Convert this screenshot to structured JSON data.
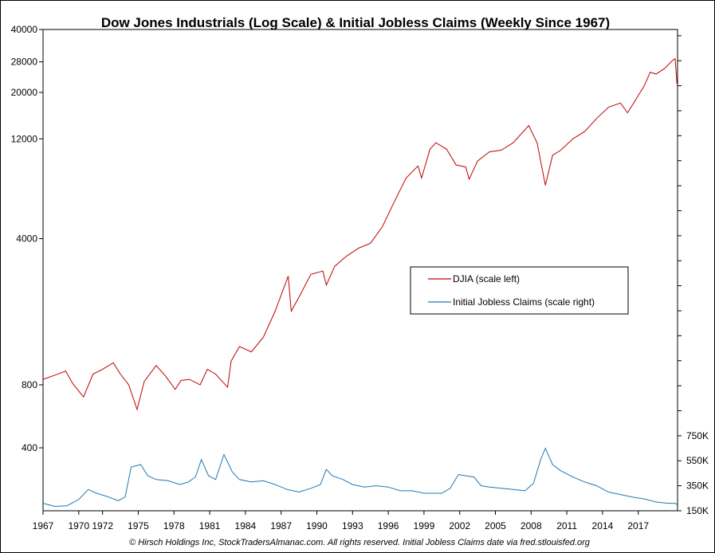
{
  "chart_data": {
    "type": "line",
    "title": "Dow Jones Industrials (Log Scale) & Initial Jobless Claims (Weekly Since 1967)",
    "footer": "© Hirsch Holdings Inc, StockTradersAlmanac.com. All rights reserved. Initial Jobless Claims date via fred.stlouisfed.org",
    "x_ticks": [
      "1967",
      "1970",
      "1972",
      "1975",
      "1978",
      "1981",
      "1984",
      "1987",
      "1990",
      "1993",
      "1996",
      "1999",
      "2002",
      "2005",
      "2008",
      "2011",
      "2014",
      "2017"
    ],
    "x_tick_years": [
      1967,
      1970,
      1972,
      1975,
      1978,
      1981,
      1984,
      1987,
      1990,
      1993,
      1996,
      1999,
      2002,
      2005,
      2008,
      2011,
      2014,
      2017
    ],
    "xlim": [
      1967,
      2020.3
    ],
    "left_axis": {
      "scale": "log",
      "range": [
        200,
        40000
      ],
      "tick_values": [
        400,
        800,
        4000,
        12000,
        20000,
        28000,
        40000
      ],
      "tick_labels": [
        "400",
        "800",
        "4000",
        "12000",
        "20000",
        "28000",
        "40000"
      ]
    },
    "right_axis": {
      "scale": "linear",
      "range": [
        150000,
        4000000
      ],
      "tick_values": [
        150000,
        350000,
        550000,
        750000
      ],
      "tick_labels": [
        "150K",
        "350K",
        "550K",
        "750K"
      ]
    },
    "legend": {
      "position": "center-right",
      "entries": [
        "DJIA (scale left)",
        "Initial Jobless Claims (scale right)"
      ]
    },
    "series": [
      {
        "name": "DJIA (scale left)",
        "axis": "left",
        "color": "#c00000",
        "x": [
          1967,
          1968,
          1968.9,
          1969.5,
          1970.4,
          1971.2,
          1972,
          1972.9,
          1973.5,
          1974.2,
          1974.9,
          1975.5,
          1976.5,
          1977.3,
          1978.1,
          1978.6,
          1979.3,
          1980.2,
          1980.8,
          1981.5,
          1982.5,
          1982.8,
          1983.5,
          1984.5,
          1985.5,
          1986.5,
          1987.6,
          1987.85,
          1988.5,
          1989.5,
          1990.5,
          1990.8,
          1991.5,
          1992.5,
          1993.5,
          1994.5,
          1995.5,
          1996.5,
          1997.5,
          1998.5,
          1998.8,
          1999.5,
          2000,
          2000.9,
          2001.7,
          2002.5,
          2002.8,
          2003.5,
          2004.5,
          2005.5,
          2006.5,
          2007.8,
          2008.5,
          2009.2,
          2009.8,
          2010.5,
          2011.5,
          2012.5,
          2013.5,
          2014.5,
          2015.5,
          2016.1,
          2016.8,
          2017.5,
          2018,
          2018.5,
          2019.2,
          2019.9,
          2020.1,
          2020.25
        ],
        "y": [
          850,
          890,
          930,
          810,
          700,
          900,
          950,
          1020,
          900,
          800,
          610,
          830,
          990,
          880,
          760,
          840,
          850,
          800,
          950,
          900,
          780,
          1040,
          1220,
          1150,
          1350,
          1800,
          2650,
          1800,
          2100,
          2700,
          2800,
          2400,
          2950,
          3300,
          3600,
          3800,
          4550,
          6000,
          7800,
          8900,
          7800,
          10700,
          11500,
          10700,
          9000,
          8800,
          7700,
          9400,
          10400,
          10600,
          11500,
          13900,
          11500,
          7200,
          10000,
          10600,
          12000,
          13000,
          15000,
          17000,
          17800,
          16000,
          18500,
          21500,
          25000,
          24500,
          26000,
          28500,
          29000,
          22000
        ]
      },
      {
        "name": "Initial Jobless Claims (scale right)",
        "axis": "right",
        "color": "#1f77b4",
        "x": [
          1967,
          1968,
          1969,
          1970,
          1970.8,
          1971.5,
          1972.5,
          1973.3,
          1973.9,
          1974.4,
          1975.2,
          1975.8,
          1976.5,
          1977.5,
          1978.5,
          1979.2,
          1979.8,
          1980.3,
          1980.9,
          1981.5,
          1982.2,
          1982.9,
          1983.5,
          1984.5,
          1985.5,
          1986.5,
          1987.5,
          1988.5,
          1989.5,
          1990.3,
          1990.8,
          1991.3,
          1992.2,
          1993,
          1994,
          1995,
          1996,
          1997,
          1998,
          1999,
          2000.5,
          2001.2,
          2001.9,
          2002.5,
          2003.2,
          2003.8,
          2004.5,
          2005.5,
          2006.5,
          2007.5,
          2008.2,
          2008.8,
          2009.2,
          2009.8,
          2010.5,
          2011.5,
          2012.5,
          2013.5,
          2014.5,
          2015.5,
          2016.5,
          2017.5,
          2018.5,
          2019.5,
          2020.1,
          2020.25
        ],
        "y": [
          210,
          185,
          190,
          240,
          320,
          290,
          260,
          230,
          260,
          500,
          520,
          430,
          400,
          390,
          360,
          380,
          420,
          560,
          430,
          400,
          600,
          460,
          400,
          380,
          390,
          360,
          320,
          300,
          330,
          360,
          480,
          430,
          400,
          360,
          340,
          350,
          340,
          310,
          310,
          290,
          290,
          330,
          440,
          430,
          420,
          350,
          340,
          330,
          320,
          310,
          370,
          560,
          650,
          520,
          470,
          420,
          380,
          350,
          300,
          280,
          260,
          245,
          220,
          210,
          210,
          200
        ]
      }
    ]
  }
}
